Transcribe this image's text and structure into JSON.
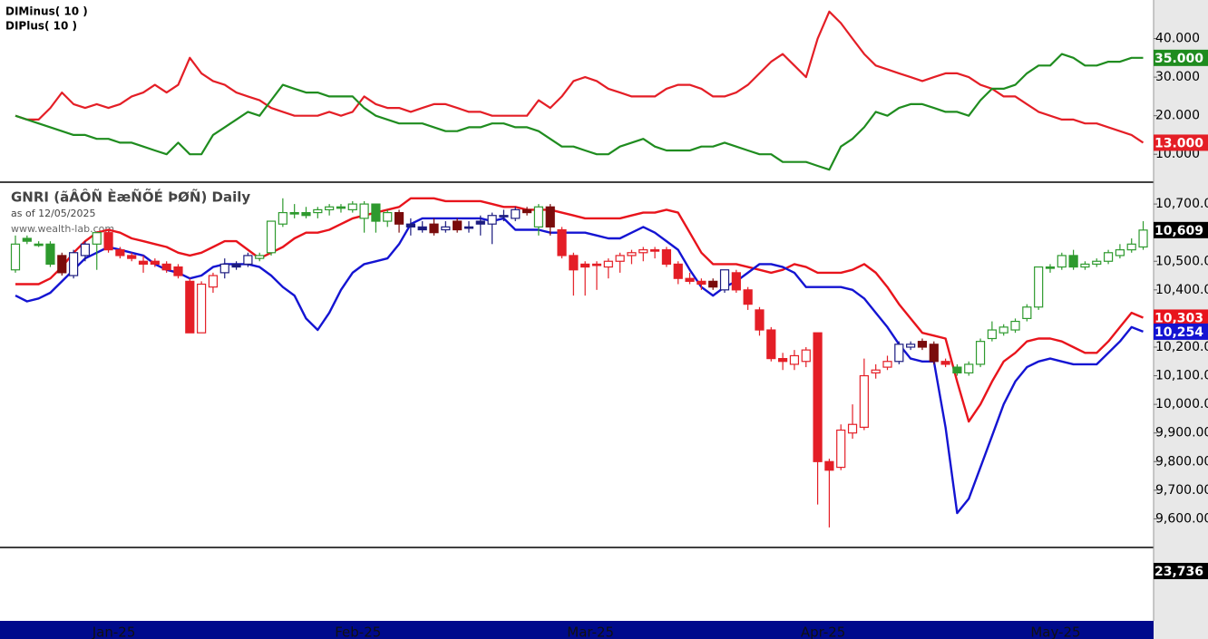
{
  "chart_data": [
    {
      "type": "line",
      "ylim": [
        3,
        50
      ],
      "yticks": [
        {
          "value": 40,
          "label": "40.000"
        },
        {
          "value": 30,
          "label": "30.000"
        },
        {
          "value": 20,
          "label": "20.000"
        },
        {
          "value": 10,
          "label": "10.000"
        }
      ],
      "series": [
        {
          "name": "DIMinus( 10 )",
          "color": "#e41e26",
          "last_label": "13.000",
          "values": [
            20,
            19,
            19,
            22,
            26,
            23,
            22,
            23,
            22,
            23,
            25,
            26,
            28,
            26,
            28,
            35,
            31,
            29,
            28,
            26,
            25,
            24,
            22,
            21,
            20,
            20,
            20,
            21,
            20,
            21,
            25,
            23,
            22,
            22,
            21,
            22,
            23,
            23,
            22,
            21,
            21,
            20,
            20,
            20,
            20,
            24,
            22,
            25,
            29,
            30,
            29,
            27,
            26,
            25,
            25,
            25,
            27,
            28,
            28,
            27,
            25,
            25,
            26,
            28,
            31,
            34,
            36,
            33,
            30,
            40,
            47,
            44,
            40,
            36,
            33,
            32,
            31,
            30,
            29,
            30,
            31,
            31,
            30,
            28,
            27,
            25,
            25,
            23,
            21,
            20,
            19,
            19,
            18,
            18,
            17,
            16,
            15,
            13
          ]
        },
        {
          "name": "DIPlus( 10 )",
          "color": "#1f8c1f",
          "last_label": "35.000",
          "values": [
            20,
            19,
            18,
            17,
            16,
            15,
            15,
            14,
            14,
            13,
            13,
            12,
            11,
            10,
            13,
            10,
            10,
            15,
            17,
            19,
            21,
            20,
            24,
            28,
            27,
            26,
            26,
            25,
            25,
            25,
            22,
            20,
            19,
            18,
            18,
            18,
            17,
            16,
            16,
            17,
            17,
            18,
            18,
            17,
            17,
            16,
            14,
            12,
            12,
            11,
            10,
            10,
            12,
            13,
            14,
            12,
            11,
            11,
            11,
            12,
            12,
            13,
            12,
            11,
            10,
            10,
            8,
            8,
            8,
            7,
            6,
            12,
            14,
            17,
            21,
            20,
            22,
            23,
            23,
            22,
            21,
            21,
            20,
            24,
            27,
            27,
            28,
            31,
            33,
            33,
            36,
            35,
            33,
            33,
            34,
            34,
            35,
            35
          ]
        }
      ]
    },
    {
      "type": "candlestick",
      "title": "GNRI (ãÂÔÑ ÈæÑÕÉ ÞØÑ) Daily",
      "subtitle": "as of 12/05/2025",
      "source": "www.wealth-lab.com",
      "ylim": [
        9500,
        10770
      ],
      "yticks": [
        {
          "value": 10700,
          "label": "10,700.00"
        },
        {
          "value": 10500,
          "label": "10,500.00"
        },
        {
          "value": 10400,
          "label": "10,400.00"
        },
        {
          "value": 10200,
          "label": "10,200.00"
        },
        {
          "value": 10100,
          "label": "10,100.00"
        },
        {
          "value": 10000,
          "label": "10,000.00"
        },
        {
          "value": 9900,
          "label": "9,900.00"
        },
        {
          "value": 9800,
          "label": "9,800.00"
        },
        {
          "value": 9700,
          "label": "9,700.00"
        },
        {
          "value": 9600,
          "label": "9,600.00"
        }
      ],
      "categories": [
        null,
        null,
        null,
        null,
        null,
        null,
        null,
        null,
        "Jan-25",
        null,
        null,
        null,
        null,
        null,
        null,
        null,
        null,
        null,
        null,
        null,
        null,
        null,
        null,
        null,
        null,
        null,
        null,
        null,
        null,
        "Feb-25",
        null,
        null,
        null,
        null,
        null,
        null,
        null,
        null,
        null,
        null,
        null,
        null,
        null,
        null,
        null,
        null,
        null,
        null,
        null,
        "Mar-25",
        null,
        null,
        null,
        null,
        null,
        null,
        null,
        null,
        null,
        null,
        null,
        null,
        null,
        null,
        null,
        null,
        null,
        null,
        null,
        "Apr-25",
        null,
        null,
        null,
        null,
        null,
        null,
        null,
        null,
        null,
        null,
        null,
        null,
        null,
        null,
        null,
        null,
        null,
        null,
        null,
        "May-25",
        null,
        null,
        null,
        null,
        null,
        null,
        null,
        null
      ],
      "open": [
        10470,
        10580,
        10560,
        10560,
        10520,
        10450,
        10520,
        10560,
        10600,
        10540,
        10520,
        10500,
        10500,
        10490,
        10480,
        10430,
        10250,
        10410,
        10460,
        10490,
        10490,
        10510,
        10530,
        10630,
        10670,
        10670,
        10670,
        10680,
        10690,
        10680,
        10650,
        10700,
        10640,
        10670,
        10630,
        10620,
        10630,
        10610,
        10640,
        10620,
        10640,
        10630,
        10660,
        10650,
        10680,
        10620,
        10690,
        10610,
        10520,
        10490,
        10490,
        10480,
        10500,
        10520,
        10530,
        10540,
        10540,
        10490,
        10440,
        10430,
        10430,
        10400,
        10460,
        10400,
        10330,
        10260,
        10160,
        10140,
        10150,
        10250,
        9800,
        9780,
        9900,
        9920,
        10110,
        10130,
        10150,
        10200,
        10220,
        10210,
        10150,
        10130,
        10110,
        10140,
        10230,
        10250,
        10260,
        10300,
        10340,
        10480,
        10480,
        10520,
        10480,
        10490,
        10500,
        10520,
        10540,
        10550
      ],
      "high": [
        10590,
        10590,
        10570,
        10570,
        10530,
        10540,
        10570,
        10600,
        10610,
        10550,
        10530,
        10520,
        10510,
        10500,
        10490,
        10440,
        10430,
        10460,
        10510,
        10500,
        10530,
        10530,
        10640,
        10720,
        10700,
        10690,
        10690,
        10700,
        10700,
        10710,
        10710,
        10700,
        10680,
        10680,
        10650,
        10640,
        10650,
        10640,
        10650,
        10640,
        10660,
        10670,
        10680,
        10690,
        10690,
        10700,
        10700,
        10620,
        10530,
        10500,
        10500,
        10510,
        10530,
        10540,
        10550,
        10550,
        10550,
        10500,
        10460,
        10440,
        10440,
        10470,
        10470,
        10410,
        10340,
        10270,
        10180,
        10190,
        10200,
        10250,
        9810,
        9930,
        10000,
        10160,
        10140,
        10170,
        10220,
        10220,
        10230,
        10220,
        10160,
        10140,
        10150,
        10230,
        10290,
        10280,
        10300,
        10350,
        10480,
        10490,
        10530,
        10540,
        10500,
        10510,
        10540,
        10560,
        10580,
        10640
      ],
      "low": [
        10460,
        10560,
        10550,
        10480,
        10450,
        10440,
        10500,
        10470,
        10530,
        10510,
        10500,
        10460,
        10480,
        10460,
        10440,
        10250,
        10250,
        10390,
        10440,
        10470,
        10480,
        10500,
        10520,
        10620,
        10650,
        10650,
        10650,
        10660,
        10670,
        10670,
        10600,
        10600,
        10620,
        10600,
        10590,
        10600,
        10590,
        10600,
        10600,
        10600,
        10590,
        10560,
        10640,
        10640,
        10660,
        10590,
        10590,
        10510,
        10380,
        10380,
        10400,
        10440,
        10460,
        10490,
        10500,
        10510,
        10480,
        10420,
        10420,
        10400,
        10400,
        10390,
        10390,
        10330,
        10240,
        10150,
        10120,
        10120,
        10130,
        9650,
        9570,
        9770,
        9880,
        9910,
        10090,
        10120,
        10140,
        10190,
        10190,
        10140,
        10130,
        10100,
        10100,
        10130,
        10220,
        10240,
        10250,
        10290,
        10330,
        10460,
        10470,
        10470,
        10470,
        10480,
        10490,
        10510,
        10530,
        10540
      ],
      "close": [
        10560,
        10570,
        10560,
        10490,
        10460,
        10530,
        10560,
        10600,
        10540,
        10520,
        10510,
        10490,
        10490,
        10470,
        10450,
        10250,
        10420,
        10450,
        10490,
        10480,
        10520,
        10520,
        10640,
        10670,
        10670,
        10660,
        10680,
        10690,
        10690,
        10700,
        10700,
        10640,
        10670,
        10630,
        10620,
        10610,
        10600,
        10620,
        10610,
        10620,
        10630,
        10660,
        10660,
        10680,
        10670,
        10690,
        10620,
        10520,
        10470,
        10480,
        10490,
        10500,
        10520,
        10530,
        10540,
        10540,
        10490,
        10440,
        10430,
        10420,
        10410,
        10470,
        10400,
        10350,
        10260,
        10160,
        10150,
        10170,
        10190,
        9800,
        9770,
        9910,
        9930,
        10100,
        10120,
        10150,
        10210,
        10210,
        10200,
        10150,
        10140,
        10110,
        10140,
        10220,
        10260,
        10270,
        10290,
        10340,
        10480,
        10480,
        10520,
        10480,
        10490,
        10500,
        10530,
        10540,
        10560,
        10609
      ],
      "last_label": "10,609",
      "colors": [
        "#2e9a2e",
        "#2e9a2e",
        "#2e9a2e",
        "#2e9a2e",
        "#7a0c0c",
        "#1c1c80",
        "#1c1c80",
        "#2e9a2e",
        "#e41e26",
        "#e41e26",
        "#e41e26",
        "#e41e26",
        "#e41e26",
        "#e41e26",
        "#e41e26",
        "#e41e26",
        "#e41e26",
        "#e41e26",
        "#1c1c80",
        "#1c1c80",
        "#1c1c80",
        "#2e9a2e",
        "#2e9a2e",
        "#2e9a2e",
        "#2e9a2e",
        "#2e9a2e",
        "#2e9a2e",
        "#2e9a2e",
        "#2e9a2e",
        "#2e9a2e",
        "#2e9a2e",
        "#2e9a2e",
        "#2e9a2e",
        "#7a0c0c",
        "#1c1c80",
        "#1c1c80",
        "#7a0c0c",
        "#1c1c80",
        "#7a0c0c",
        "#1c1c80",
        "#1c1c80",
        "#1c1c80",
        "#1c1c80",
        "#1c1c80",
        "#7a0c0c",
        "#2e9a2e",
        "#7a0c0c",
        "#e41e26",
        "#e41e26",
        "#e41e26",
        "#e41e26",
        "#e41e26",
        "#e41e26",
        "#e41e26",
        "#e41e26",
        "#e41e26",
        "#e41e26",
        "#e41e26",
        "#e41e26",
        "#e41e26",
        "#7a0c0c",
        "#1c1c80",
        "#e41e26",
        "#e41e26",
        "#e41e26",
        "#e41e26",
        "#e41e26",
        "#e41e26",
        "#e41e26",
        "#e41e26",
        "#e41e26",
        "#e41e26",
        "#e41e26",
        "#e41e26",
        "#e41e26",
        "#e41e26",
        "#1c1c80",
        "#1c1c80",
        "#7a0c0c",
        "#7a0c0c",
        "#e41e26",
        "#2e9a2e",
        "#2e9a2e",
        "#2e9a2e",
        "#2e9a2e",
        "#2e9a2e",
        "#2e9a2e",
        "#2e9a2e",
        "#2e9a2e",
        "#2e9a2e",
        "#2e9a2e",
        "#2e9a2e",
        "#2e9a2e",
        "#2e9a2e",
        "#2e9a2e",
        "#2e9a2e",
        "#2e9a2e",
        "#2e9a2e"
      ],
      "series": [
        {
          "color": "#e8141c",
          "last_label": "10,303",
          "values": [
            10420,
            10420,
            10420,
            10440,
            10480,
            10530,
            10570,
            10600,
            10610,
            10600,
            10580,
            10570,
            10560,
            10550,
            10530,
            10520,
            10530,
            10550,
            10570,
            10570,
            10540,
            10510,
            10530,
            10550,
            10580,
            10600,
            10600,
            10610,
            10630,
            10650,
            10660,
            10670,
            10680,
            10690,
            10720,
            10720,
            10720,
            10710,
            10710,
            10710,
            10710,
            10700,
            10690,
            10690,
            10680,
            10680,
            10680,
            10670,
            10660,
            10650,
            10650,
            10650,
            10650,
            10660,
            10670,
            10670,
            10680,
            10670,
            10600,
            10530,
            10490,
            10490,
            10490,
            10480,
            10470,
            10460,
            10470,
            10490,
            10480,
            10460,
            10460,
            10460,
            10470,
            10490,
            10460,
            10410,
            10350,
            10300,
            10250,
            10240,
            10230,
            10080,
            9940,
            10000,
            10080,
            10150,
            10180,
            10220,
            10230,
            10230,
            10220,
            10200,
            10180,
            10180,
            10220,
            10270,
            10320,
            10303
          ]
        },
        {
          "color": "#1414d2",
          "last_label": "10,254",
          "values": [
            10380,
            10360,
            10370,
            10390,
            10430,
            10470,
            10510,
            10530,
            10550,
            10540,
            10530,
            10520,
            10490,
            10470,
            10460,
            10440,
            10450,
            10480,
            10490,
            10490,
            10490,
            10480,
            10450,
            10410,
            10380,
            10300,
            10260,
            10320,
            10400,
            10460,
            10490,
            10500,
            10510,
            10560,
            10630,
            10650,
            10650,
            10650,
            10650,
            10650,
            10650,
            10640,
            10650,
            10610,
            10610,
            10610,
            10600,
            10600,
            10600,
            10600,
            10590,
            10580,
            10580,
            10600,
            10620,
            10600,
            10570,
            10540,
            10470,
            10410,
            10380,
            10410,
            10430,
            10460,
            10490,
            10490,
            10480,
            10460,
            10410,
            10410,
            10410,
            10410,
            10400,
            10370,
            10320,
            10270,
            10210,
            10160,
            10150,
            10150,
            9920,
            9620,
            9670,
            9780,
            9890,
            10000,
            10080,
            10130,
            10150,
            10160,
            10150,
            10140,
            10140,
            10140,
            10180,
            10220,
            10270,
            10254
          ]
        }
      ]
    },
    {
      "type": "volume",
      "last_value": 23736,
      "last_label": "23,736"
    }
  ]
}
